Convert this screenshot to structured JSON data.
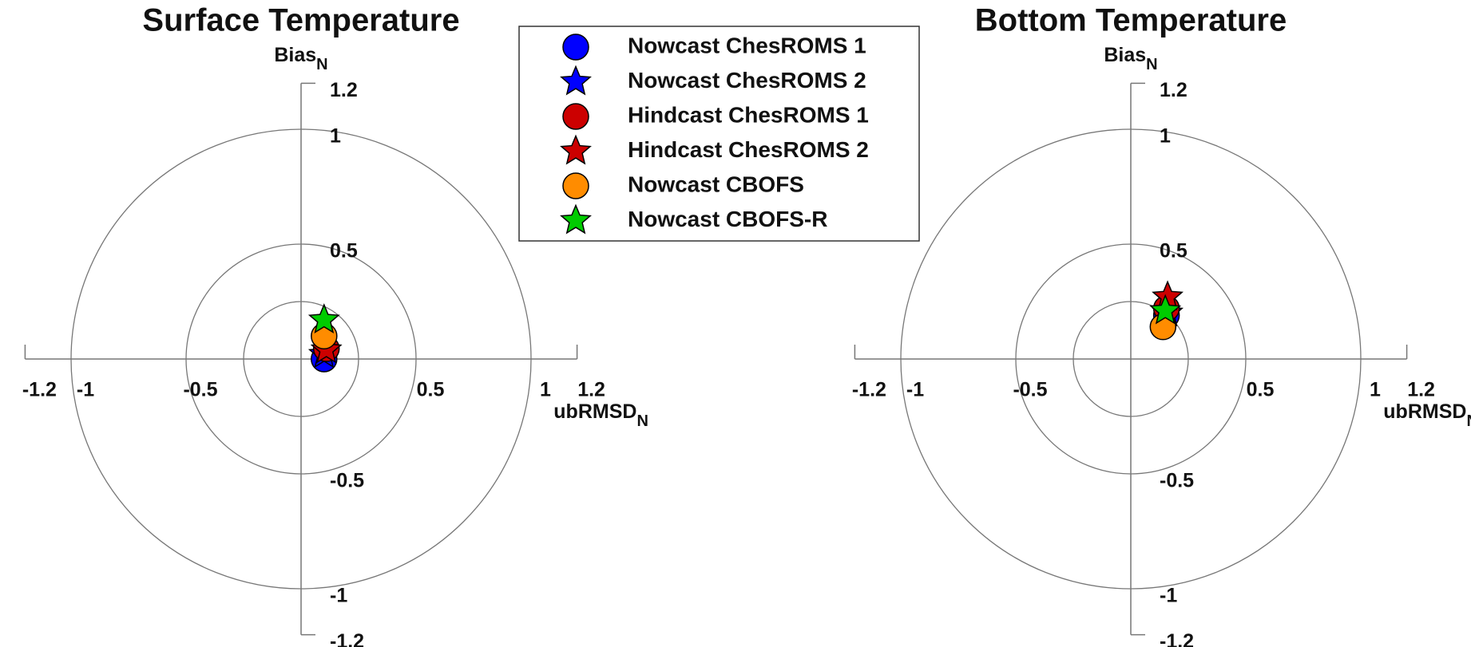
{
  "chart_data": [
    {
      "type": "scatter",
      "title": "Surface Temperature",
      "xlabel": "ubRMSD",
      "xlabel_sub": "N",
      "ylabel": "Bias",
      "ylabel_sub": "N",
      "xlim": [
        -1.2,
        1.2
      ],
      "ylim": [
        -1.2,
        1.2
      ],
      "xticks": [
        -1.2,
        -1,
        -0.5,
        0.5,
        1,
        1.2
      ],
      "yticks": [
        -1.2,
        -1,
        -0.5,
        0.5,
        1,
        1.2
      ],
      "rings": [
        0.25,
        0.5,
        1
      ],
      "legend": "outside",
      "series": [
        {
          "name": "Nowcast ChesROMS 1",
          "color": "#0000ff",
          "marker": "circle",
          "x": [
            0.1
          ],
          "values": [
            0.0
          ]
        },
        {
          "name": "Nowcast ChesROMS 2",
          "color": "#0000ff",
          "marker": "star",
          "x": [
            0.1
          ],
          "values": [
            0.02
          ]
        },
        {
          "name": "Hindcast ChesROMS 1",
          "color": "#cc0000",
          "marker": "circle",
          "x": [
            0.11
          ],
          "values": [
            0.045
          ]
        },
        {
          "name": "Hindcast ChesROMS 2",
          "color": "#cc0000",
          "marker": "star",
          "x": [
            0.11
          ],
          "values": [
            0.04
          ]
        },
        {
          "name": "Nowcast CBOFS",
          "color": "#ff8c00",
          "marker": "circle",
          "x": [
            0.1
          ],
          "values": [
            0.1
          ]
        },
        {
          "name": "Nowcast CBOFS-R",
          "color": "#00cc00",
          "marker": "star",
          "x": [
            0.1
          ],
          "values": [
            0.17
          ]
        }
      ]
    },
    {
      "type": "scatter",
      "title": "Bottom Temperature",
      "xlabel": "ubRMSD",
      "xlabel_sub": "N",
      "ylabel": "Bias",
      "ylabel_sub": "N",
      "xlim": [
        -1.2,
        1.2
      ],
      "ylim": [
        -1.2,
        1.2
      ],
      "xticks": [
        -1.2,
        -1,
        -0.5,
        0.5,
        1,
        1.2
      ],
      "yticks": [
        -1.2,
        -1,
        -0.5,
        0.5,
        1,
        1.2
      ],
      "rings": [
        0.25,
        0.5,
        1
      ],
      "series": [
        {
          "name": "Nowcast ChesROMS 1",
          "color": "#0000ff",
          "marker": "circle",
          "x": [
            0.155
          ],
          "values": [
            0.19
          ]
        },
        {
          "name": "Nowcast ChesROMS 2",
          "color": "#0000ff",
          "marker": "star",
          "x": [
            0.16
          ],
          "values": [
            0.2
          ]
        },
        {
          "name": "Hindcast ChesROMS 1",
          "color": "#cc0000",
          "marker": "circle",
          "x": [
            0.155
          ],
          "values": [
            0.22
          ]
        },
        {
          "name": "Hindcast ChesROMS 2",
          "color": "#cc0000",
          "marker": "star",
          "x": [
            0.16
          ],
          "values": [
            0.27
          ]
        },
        {
          "name": "Nowcast CBOFS",
          "color": "#ff8c00",
          "marker": "circle",
          "x": [
            0.14
          ],
          "values": [
            0.14
          ]
        },
        {
          "name": "Nowcast CBOFS-R",
          "color": "#00cc00",
          "marker": "star",
          "x": [
            0.15
          ],
          "values": [
            0.21
          ]
        }
      ]
    }
  ]
}
